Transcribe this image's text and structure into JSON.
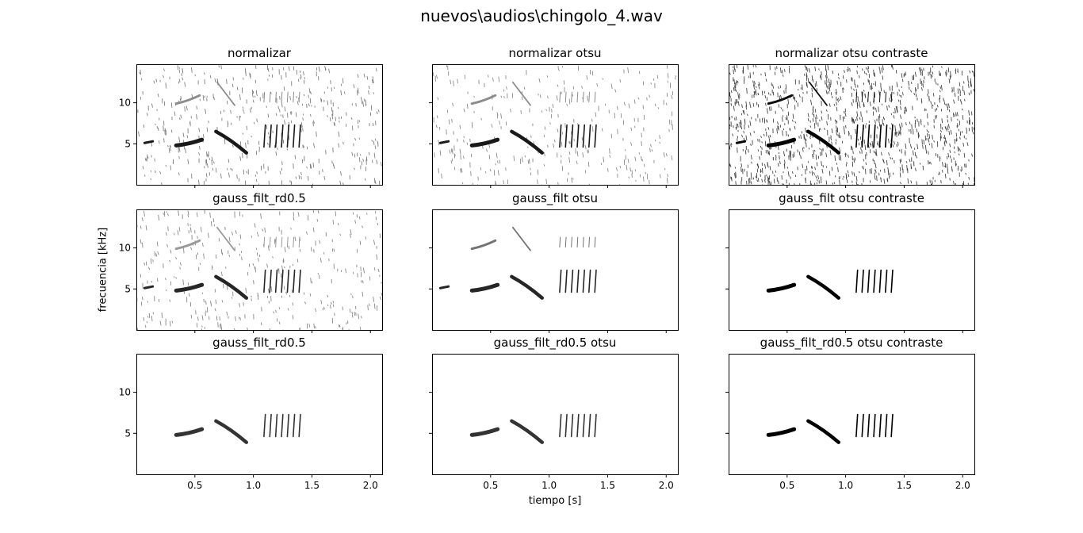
{
  "figure": {
    "suptitle": "nuevos\\audios\\chingolo_4.wav",
    "xlabel": "tiempo [s]",
    "ylabel": "frecuencia [kHz]"
  },
  "chart_data": {
    "type": "heatmap",
    "grid": false,
    "x": {
      "label": "tiempo [s]",
      "range": [
        0.0,
        2.1
      ],
      "ticks": [
        0.5,
        1.0,
        1.5,
        2.0
      ],
      "tick_labels": [
        "0.5",
        "1.0",
        "1.5",
        "2.0"
      ]
    },
    "y": {
      "label": "frecuencia [kHz]",
      "range": [
        0.0,
        14.7
      ],
      "ticks": [
        5,
        10
      ],
      "tick_labels": [
        "5",
        "10"
      ]
    },
    "panels": [
      {
        "title": "normalizar",
        "noise": 0.32,
        "weak_darkness": 0.45,
        "strong_darkness": 0.9,
        "show_high": true,
        "show_chirp": true
      },
      {
        "title": "normalizar otsu",
        "noise": 0.22,
        "weak_darkness": 0.45,
        "strong_darkness": 0.9,
        "show_high": true,
        "show_chirp": true
      },
      {
        "title": "normalizar otsu contraste",
        "noise": 0.8,
        "weak_darkness": 0.95,
        "strong_darkness": 1.0,
        "show_high": true,
        "show_chirp": true
      },
      {
        "title": "gauss_filt_rd0.5",
        "noise": 0.25,
        "weak_darkness": 0.4,
        "strong_darkness": 0.85,
        "show_high": true,
        "show_chirp": true
      },
      {
        "title": "gauss_filt otsu",
        "noise": 0.0,
        "weak_darkness": 0.55,
        "strong_darkness": 0.85,
        "show_high": true,
        "show_chirp": true
      },
      {
        "title": "gauss_filt otsu contraste",
        "noise": 0.0,
        "weak_darkness": 0.0,
        "strong_darkness": 1.0,
        "show_high": false,
        "show_chirp": false
      },
      {
        "title": "gauss_filt_rd0.5",
        "noise": 0.0,
        "weak_darkness": 0.0,
        "strong_darkness": 0.8,
        "show_high": false,
        "show_chirp": false
      },
      {
        "title": "gauss_filt_rd0.5 otsu",
        "noise": 0.0,
        "weak_darkness": 0.0,
        "strong_darkness": 0.8,
        "show_high": false,
        "show_chirp": false
      },
      {
        "title": "gauss_filt_rd0.5 otsu contraste",
        "noise": 0.0,
        "weak_darkness": 0.0,
        "strong_darkness": 1.0,
        "show_high": false,
        "show_chirp": false
      }
    ],
    "syllables": {
      "chirp": {
        "t": [
          0.07,
          0.14
        ],
        "f": [
          5.1,
          5.3
        ]
      },
      "low_sweep": {
        "t": [
          0.34,
          0.56
        ],
        "f": [
          4.8,
          5.5
        ]
      },
      "descending": {
        "t": [
          0.68,
          0.94
        ],
        "f": [
          6.5,
          3.9
        ]
      },
      "trill": {
        "t_start": 1.09,
        "count": 7,
        "spacing": 0.05,
        "f": [
          7.3,
          4.6
        ]
      },
      "high_sweep": {
        "t": [
          0.34,
          0.54
        ],
        "f": [
          9.9,
          10.9
        ]
      },
      "high_diag": {
        "t": [
          0.69,
          0.84
        ],
        "f": [
          12.5,
          9.7
        ]
      },
      "high_trill": {
        "t_start": 1.09,
        "count": 7,
        "spacing": 0.05,
        "f": [
          11.3,
          10.1
        ]
      }
    }
  }
}
